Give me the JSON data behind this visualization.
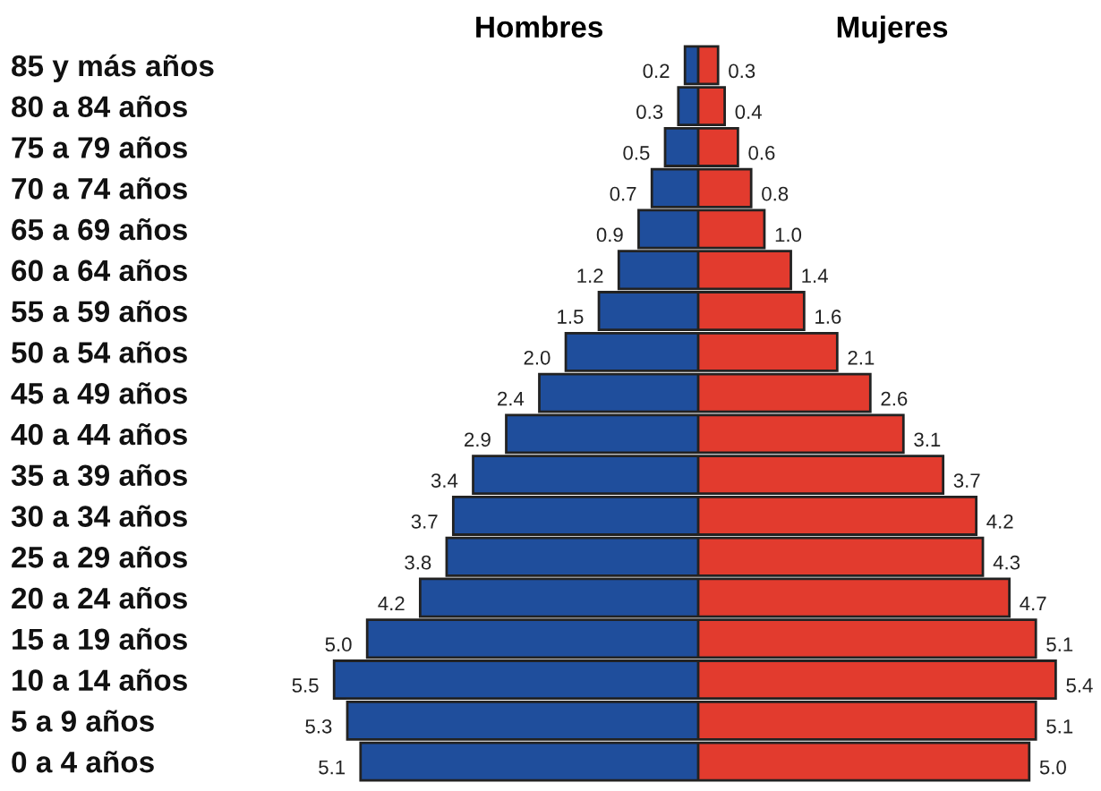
{
  "chart_data": [
    {
      "type": "bar",
      "orientation": "horizontal",
      "title": "Hombres",
      "categories": [
        "85 y más años",
        "80 a 84 años",
        "75 a 79 años",
        "70 a 74 años",
        "65 a 69 años",
        "60 a 64 años",
        "55 a 59 años",
        "50 a 54 años",
        "45 a 49 años",
        "40 a 44 años",
        "35 a 39 años",
        "30 a 34 años",
        "25 a 29 años",
        "20 a 24 años",
        "15 a 19 años",
        "10 a 14 años",
        "5 a 9 años",
        "0 a 4 años"
      ],
      "series": [
        {
          "color": "#1f4e9c",
          "values": [
            0.2,
            0.3,
            0.5,
            0.7,
            0.9,
            1.2,
            1.5,
            2.0,
            2.4,
            2.9,
            3.4,
            3.7,
            3.8,
            4.2,
            5.0,
            5.5,
            5.3,
            5.1
          ],
          "value_labels": [
            "0.2",
            "0.3",
            "0.5",
            "0.7",
            "0.9",
            "1.2",
            "1.5",
            "2.0",
            "2.4",
            "2.9",
            "3.4",
            "3.7",
            "3.8",
            "4.2",
            "5.0",
            "5.5",
            "5.3",
            "5.1"
          ]
        }
      ]
    },
    {
      "type": "bar",
      "orientation": "horizontal",
      "title": "Mujeres",
      "categories": [
        null,
        null,
        null,
        null,
        null,
        null,
        null,
        null,
        null,
        null,
        null,
        null,
        null,
        null,
        null,
        null,
        null,
        null
      ],
      "series": [
        {
          "color": "#e23b2e",
          "values": [
            0.3,
            0.4,
            0.6,
            0.8,
            1.0,
            1.4,
            1.6,
            2.1,
            2.6,
            3.1,
            3.7,
            4.2,
            4.3,
            4.7,
            5.1,
            5.4,
            5.1,
            5.0
          ],
          "value_labels": [
            "0.3",
            "0.4",
            "0.6",
            "0.8",
            "1.0",
            "1.4",
            "1.6",
            "2.1",
            "2.6",
            "3.1",
            "3.7",
            "4.2",
            "4.3",
            "4.7",
            "5.1",
            "5.4",
            "5.1",
            "5.0"
          ]
        }
      ]
    }
  ]
}
